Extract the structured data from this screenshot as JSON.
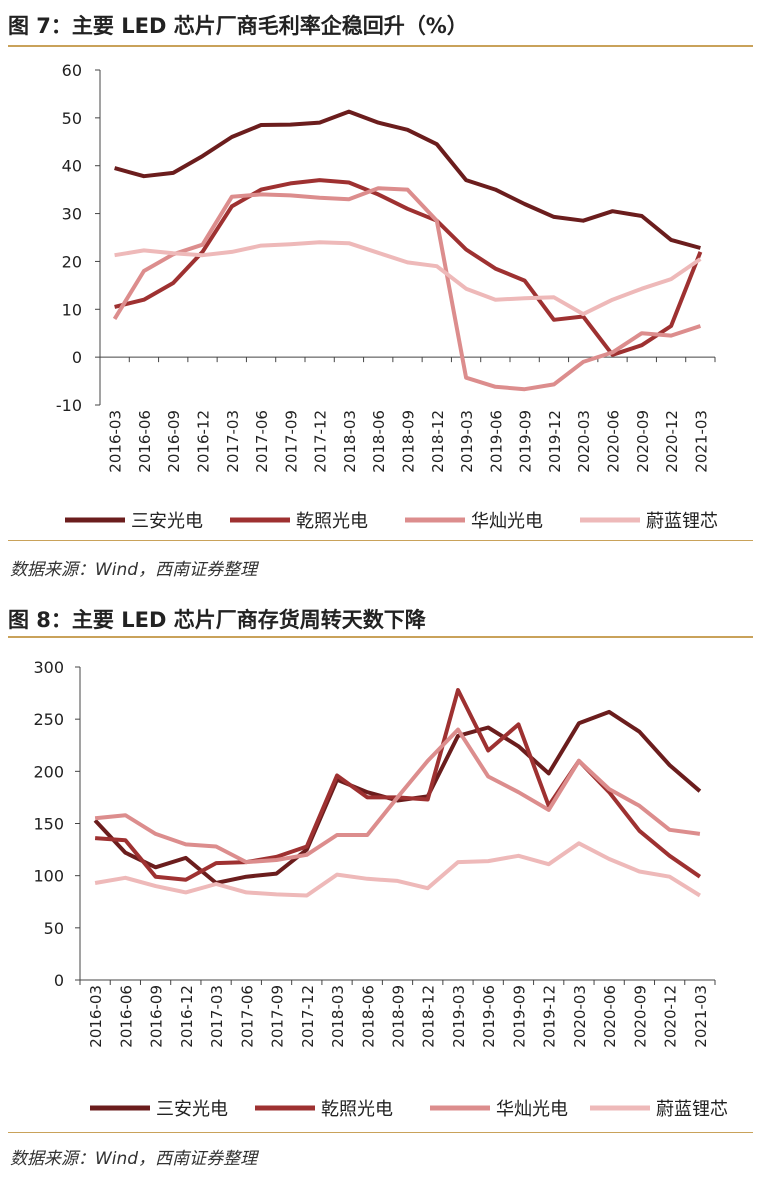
{
  "figures": [
    {
      "title": "图 7：主要 LED 芯片厂商毛利率企稳回升（%）",
      "source": "数据来源：Wind，西南证券整理"
    },
    {
      "title": "图 8：主要 LED 芯片厂商存货周转天数下降",
      "source": "数据来源：Wind，西南证券整理"
    }
  ],
  "chart_data": [
    {
      "type": "line",
      "title": "图 7：主要 LED 芯片厂商毛利率企稳回升（%）",
      "xlabel": "",
      "ylabel": "",
      "ylim": [
        -10,
        60
      ],
      "yticks": [
        -10,
        0,
        10,
        20,
        30,
        40,
        50,
        60
      ],
      "grid": false,
      "legend": "bottom",
      "categories": [
        "2016-03",
        "2016-06",
        "2016-09",
        "2016-12",
        "2017-03",
        "2017-06",
        "2017-09",
        "2017-12",
        "2018-03",
        "2018-06",
        "2018-09",
        "2018-12",
        "2019-03",
        "2019-06",
        "2019-09",
        "2019-12",
        "2020-03",
        "2020-06",
        "2020-09",
        "2020-12",
        "2021-03"
      ],
      "series": [
        {
          "name": "三安光电",
          "color": "#6b1d1d",
          "values": [
            39.5,
            37.8,
            38.5,
            42,
            46,
            48.5,
            48.6,
            49,
            51.3,
            49,
            47.5,
            44.5,
            37,
            35,
            32,
            29.3,
            28.5,
            30.5,
            29.5,
            24.5,
            22.8
          ]
        },
        {
          "name": "乾照光电",
          "color": "#9e3131",
          "values": [
            10.5,
            12,
            15.5,
            22,
            31.5,
            35,
            36.3,
            37,
            36.5,
            34,
            31,
            28.5,
            22.5,
            18.5,
            16,
            7.8,
            8.5,
            0.5,
            2.5,
            6.5,
            22
          ]
        },
        {
          "name": "华灿光电",
          "color": "#dc8d8d",
          "values": [
            8,
            18,
            21.5,
            23.5,
            33.5,
            34,
            33.8,
            33.3,
            33,
            35.3,
            35,
            28.5,
            -4.3,
            -6.2,
            -6.7,
            -5.7,
            -1,
            1,
            5,
            4.5,
            6.5
          ]
        },
        {
          "name": "蔚蓝锂芯",
          "color": "#eeb9b9",
          "values": [
            21.3,
            22.3,
            21.7,
            21.3,
            22,
            23.3,
            23.6,
            24,
            23.8,
            21.8,
            19.8,
            19,
            14.3,
            12,
            12.3,
            12.5,
            9,
            12,
            14.3,
            16.3,
            20.5
          ]
        }
      ]
    },
    {
      "type": "line",
      "title": "图 8：主要 LED 芯片厂商存货周转天数下降",
      "xlabel": "",
      "ylabel": "",
      "ylim": [
        0,
        300
      ],
      "yticks": [
        0,
        50,
        100,
        150,
        200,
        250,
        300
      ],
      "grid": false,
      "legend": "bottom",
      "categories": [
        "2016-03",
        "2016-06",
        "2016-09",
        "2016-12",
        "2017-03",
        "2017-06",
        "2017-09",
        "2017-12",
        "2018-03",
        "2018-06",
        "2018-09",
        "2018-12",
        "2019-03",
        "2019-06",
        "2019-09",
        "2019-12",
        "2020-03",
        "2020-06",
        "2020-09",
        "2020-12",
        "2021-03"
      ],
      "series": [
        {
          "name": "三安光电",
          "color": "#6b1d1d",
          "values": [
            153,
            122,
            108,
            117,
            93,
            99,
            102,
            125,
            192,
            180,
            172,
            176,
            234,
            242,
            224,
            198,
            246,
            257,
            238,
            206,
            181
          ]
        },
        {
          "name": "乾照光电",
          "color": "#9e3131",
          "values": [
            136,
            134,
            99,
            96,
            112,
            113,
            118,
            128,
            196,
            175,
            175,
            173,
            278,
            220,
            245,
            167,
            210,
            180,
            143,
            119,
            99
          ]
        },
        {
          "name": "华灿光电",
          "color": "#dc8d8d",
          "values": [
            155,
            158,
            140,
            130,
            128,
            113,
            115,
            120,
            139,
            139,
            175,
            210,
            240,
            195,
            180,
            163,
            210,
            183,
            167,
            144,
            140
          ]
        },
        {
          "name": "蔚蓝锂芯",
          "color": "#eeb9b9",
          "values": [
            93,
            98,
            90,
            84,
            92,
            84,
            82,
            81,
            101,
            97,
            95,
            88,
            113,
            114,
            119,
            111,
            131,
            116,
            104,
            99,
            81
          ]
        }
      ]
    }
  ]
}
